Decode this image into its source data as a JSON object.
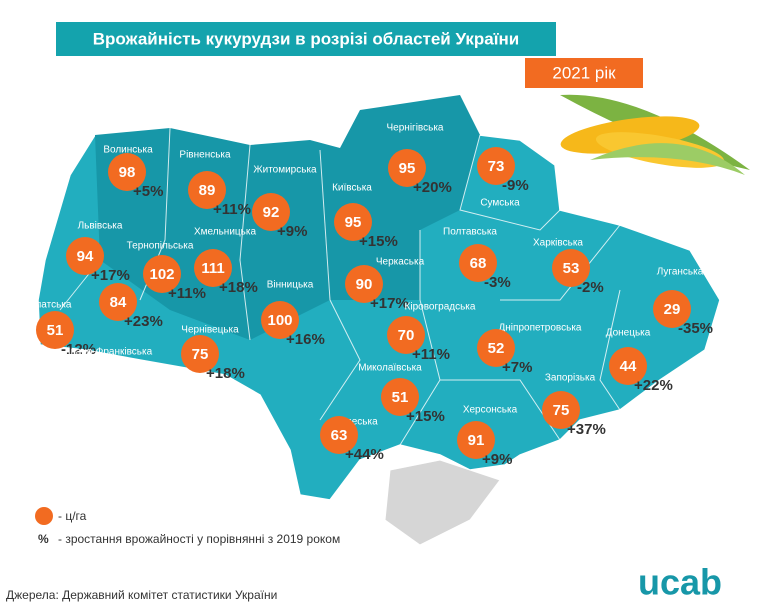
{
  "header": {
    "title": "Врожайність кукурудзи в розрізі областей України",
    "year": "2021 рік"
  },
  "regions": [
    {
      "name": "Волинська",
      "yield": 98,
      "change": "+5%"
    },
    {
      "name": "Рівненська",
      "yield": 89,
      "change": "+11%"
    },
    {
      "name": "Житомирська",
      "yield": 92,
      "change": "+9%"
    },
    {
      "name": "Київська",
      "yield": 95,
      "change": "+15%"
    },
    {
      "name": "Чернігівська",
      "yield": 95,
      "change": "+20%"
    },
    {
      "name": "Сумська",
      "yield": 73,
      "change": "-9%"
    },
    {
      "name": "Львівська",
      "yield": 94,
      "change": "+17%"
    },
    {
      "name": "Тернопільська",
      "yield": 102,
      "change": "+11%"
    },
    {
      "name": "Хмельницька",
      "yield": 111,
      "change": "+18%"
    },
    {
      "name": "Вінницька",
      "yield": 100,
      "change": "+16%"
    },
    {
      "name": "Черкаська",
      "yield": 90,
      "change": "+17%"
    },
    {
      "name": "Полтавська",
      "yield": 68,
      "change": "-3%"
    },
    {
      "name": "Харківська",
      "yield": 53,
      "change": "-2%"
    },
    {
      "name": "Луганська",
      "yield": 29,
      "change": "-35%"
    },
    {
      "name": "Закарпатська",
      "yield": 51,
      "change": "-12%"
    },
    {
      "name": "Івано-Франківська",
      "yield": 84,
      "change": "+23%"
    },
    {
      "name": "Чернівецька",
      "yield": 75,
      "change": "+18%"
    },
    {
      "name": "Кіровоградська",
      "yield": 70,
      "change": "+11%"
    },
    {
      "name": "Дніпропетровська",
      "yield": 52,
      "change": "+7%"
    },
    {
      "name": "Донецька",
      "yield": 44,
      "change": "+22%"
    },
    {
      "name": "Запорізька",
      "yield": 75,
      "change": "+37%"
    },
    {
      "name": "Миколаївська",
      "yield": 51,
      "change": "+15%"
    },
    {
      "name": "Одеська",
      "yield": 63,
      "change": "+44%"
    },
    {
      "name": "Херсонська",
      "yield": 91,
      "change": "+9%"
    }
  ],
  "legend": {
    "yield_unit": "- ц/га",
    "percent_symbol": "%",
    "percent_text": "- зростання врожайності у порівнянні  з 2019 роком"
  },
  "footer": {
    "source": "Джерела: Державний комітет статистики України",
    "logo": "ucab"
  }
}
